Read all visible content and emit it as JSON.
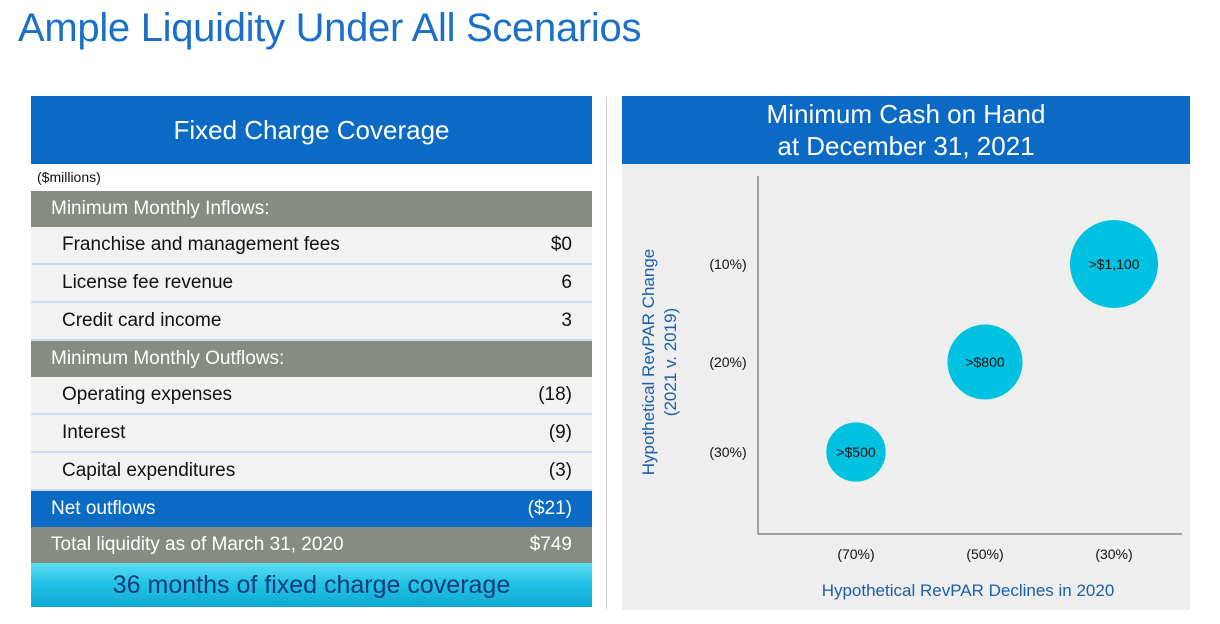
{
  "page": {
    "title": "Ample Liquidity Under All Scenarios"
  },
  "coverage_table": {
    "header": "Fixed Charge Coverage",
    "units": "($millions)",
    "inflows_header": "Minimum Monthly Inflows:",
    "inflows": [
      {
        "label": "Franchise and management fees",
        "value": "$0"
      },
      {
        "label": "License fee revenue",
        "value": "6"
      },
      {
        "label": "Credit card income",
        "value": "3"
      }
    ],
    "outflows_header": "Minimum Monthly Outflows:",
    "outflows": [
      {
        "label": "Operating expenses",
        "value": "(18)"
      },
      {
        "label": "Interest",
        "value": "(9)"
      },
      {
        "label": "Capital expenditures",
        "value": "(3)"
      }
    ],
    "net": {
      "label": "Net outflows",
      "value": "($21)"
    },
    "total": {
      "label": "Total liquidity as of March 31, 2020",
      "value": "$749"
    },
    "footer": "36 months of fixed charge coverage"
  },
  "chart_panel": {
    "header_line1": "Minimum Cash on Hand",
    "header_line2": "at December 31, 2021"
  },
  "chart_data": {
    "type": "scatter",
    "title": "Minimum Cash on Hand at December 31, 2021",
    "xlabel": "Hypothetical RevPAR Declines in 2020",
    "ylabel": "Hypothetical RevPAR Change",
    "ylabel_line2": "(2021 v. 2019)",
    "x_categories": [
      "(70%)",
      "(50%)",
      "(30%)"
    ],
    "y_categories": [
      "(30%)",
      "(20%)",
      "(10%)"
    ],
    "points": [
      {
        "x": "(70%)",
        "y": "(30%)",
        "value": 500,
        "label": ">$500"
      },
      {
        "x": "(50%)",
        "y": "(20%)",
        "value": 800,
        "label": ">$800"
      },
      {
        "x": "(30%)",
        "y": "(10%)",
        "value": 1100,
        "label": ">$1,100"
      }
    ],
    "bubble_color": "#00c1df",
    "axis_text_color": "#1a5fa8",
    "grid": false
  }
}
